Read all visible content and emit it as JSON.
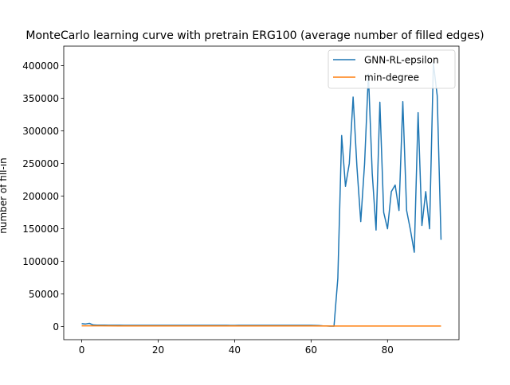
{
  "chart_data": {
    "type": "line",
    "title": "MonteCarlo learning curve with pretrain ERG100 (average number of filled edges)",
    "xlabel": "",
    "ylabel": "number of fill-in",
    "xlim": [
      -4.7,
      98.7
    ],
    "ylim": [
      -20000,
      430000
    ],
    "x_ticks": [
      0,
      20,
      40,
      60,
      80
    ],
    "y_ticks": [
      0,
      50000,
      100000,
      150000,
      200000,
      250000,
      300000,
      350000,
      400000
    ],
    "grid": false,
    "legend_position": "top-right",
    "series": [
      {
        "name": "GNN-RL-epsilon",
        "color": "#1f77b4",
        "x": [
          0,
          1,
          2,
          3,
          4,
          5,
          6,
          7,
          8,
          9,
          10,
          11,
          12,
          13,
          14,
          15,
          16,
          17,
          18,
          19,
          20,
          21,
          22,
          23,
          24,
          25,
          26,
          27,
          28,
          29,
          30,
          31,
          32,
          33,
          34,
          35,
          36,
          37,
          38,
          39,
          40,
          41,
          42,
          43,
          44,
          45,
          46,
          47,
          48,
          49,
          50,
          51,
          52,
          53,
          54,
          55,
          56,
          57,
          58,
          59,
          60,
          61,
          62,
          63,
          64,
          65,
          66,
          67,
          68,
          69,
          70,
          71,
          72,
          73,
          74,
          75,
          76,
          77,
          78,
          79,
          80,
          81,
          82,
          83,
          84,
          85,
          86,
          87,
          88,
          89,
          90,
          91,
          92,
          93,
          94
        ],
        "y": [
          4500,
          4000,
          5000,
          2500,
          2300,
          2200,
          2200,
          2100,
          2100,
          2100,
          2100,
          2000,
          2000,
          2000,
          2000,
          2000,
          2000,
          2000,
          2000,
          2000,
          2000,
          2000,
          2000,
          2000,
          2000,
          2000,
          2000,
          2000,
          2000,
          2000,
          2000,
          2000,
          2000,
          2000,
          2000,
          2000,
          2000,
          2000,
          2000,
          1800,
          1800,
          1900,
          1900,
          1900,
          1900,
          1900,
          1900,
          1900,
          1900,
          1900,
          2000,
          2000,
          2000,
          2000,
          2000,
          2000,
          2000,
          2000,
          2000,
          2000,
          2000,
          1800,
          1600,
          1200,
          1000,
          800,
          700,
          74000,
          293000,
          215000,
          250000,
          352000,
          245000,
          161000,
          250000,
          387000,
          235000,
          148000,
          344000,
          175000,
          150000,
          207000,
          217000,
          178000,
          345000,
          178000,
          148000,
          114000,
          328000,
          155000,
          207000,
          150000,
          404000,
          354000,
          133000
        ]
      },
      {
        "name": "min-degree",
        "color": "#ff7f0e",
        "x": [
          0,
          10,
          20,
          30,
          40,
          50,
          60,
          66,
          70,
          80,
          90,
          94
        ],
        "y": [
          1200,
          1100,
          1100,
          1100,
          1000,
          1000,
          1000,
          900,
          900,
          900,
          900,
          900
        ]
      }
    ]
  }
}
